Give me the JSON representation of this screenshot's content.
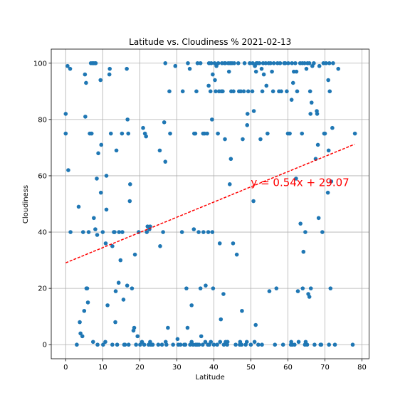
{
  "chart_data": {
    "type": "scatter",
    "title": "Latitude vs. Cloudiness % 2021-02-13",
    "xlabel": "Latitude",
    "ylabel": "Cloudiness",
    "xlim": [
      -3.9,
      81.9
    ],
    "ylim": [
      -5,
      105
    ],
    "xticks": [
      0,
      10,
      20,
      30,
      40,
      50,
      60,
      70,
      80
    ],
    "yticks": [
      0,
      20,
      40,
      60,
      80,
      100
    ],
    "grid": true,
    "marker_color": "#1f77b4",
    "regression": {
      "slope": 0.54,
      "intercept": 29.07,
      "x_range": [
        0,
        78
      ],
      "color": "#ff0000",
      "style": "dashed"
    },
    "annotation": {
      "text": "y = 0.54x + 29.07",
      "x": 50,
      "y": 55,
      "color": "#ff0000"
    },
    "points": [
      [
        0,
        82
      ],
      [
        0,
        75
      ],
      [
        0.5,
        99
      ],
      [
        0.7,
        62
      ],
      [
        1.2,
        98
      ],
      [
        1.3,
        40
      ],
      [
        3,
        0
      ],
      [
        3.5,
        49
      ],
      [
        3.8,
        8
      ],
      [
        4,
        4
      ],
      [
        4.5,
        3
      ],
      [
        4.7,
        40
      ],
      [
        5,
        12
      ],
      [
        5.2,
        96
      ],
      [
        5.3,
        81
      ],
      [
        5.5,
        93
      ],
      [
        5.6,
        20
      ],
      [
        5.8,
        20
      ],
      [
        6,
        15
      ],
      [
        6.2,
        40
      ],
      [
        6.5,
        75
      ],
      [
        6.8,
        100
      ],
      [
        7,
        75
      ],
      [
        7.2,
        100
      ],
      [
        7.4,
        1
      ],
      [
        7.5,
        100
      ],
      [
        7.6,
        45
      ],
      [
        7.9,
        100
      ],
      [
        8,
        41
      ],
      [
        8.1,
        100
      ],
      [
        8.4,
        59
      ],
      [
        8.5,
        39
      ],
      [
        8.6,
        0
      ],
      [
        8.8,
        68
      ],
      [
        9.4,
        94
      ],
      [
        9.6,
        71
      ],
      [
        9.5,
        54
      ],
      [
        10,
        40
      ],
      [
        10.1,
        0
      ],
      [
        10.7,
        1
      ],
      [
        10.8,
        36
      ],
      [
        11,
        60
      ],
      [
        11,
        48
      ],
      [
        11.3,
        14
      ],
      [
        11.8,
        96
      ],
      [
        11.9,
        98
      ],
      [
        12.2,
        75
      ],
      [
        12.6,
        0
      ],
      [
        12.6,
        35
      ],
      [
        13,
        40
      ],
      [
        13.2,
        40
      ],
      [
        13.4,
        8
      ],
      [
        13.5,
        19
      ],
      [
        13.7,
        69
      ],
      [
        13.9,
        0
      ],
      [
        14.3,
        22
      ],
      [
        14.4,
        40
      ],
      [
        14.8,
        30
      ],
      [
        15.2,
        75
      ],
      [
        15.3,
        40
      ],
      [
        15.6,
        16
      ],
      [
        15.8,
        0
      ],
      [
        16,
        0
      ],
      [
        16.5,
        98
      ],
      [
        16.6,
        21
      ],
      [
        16.7,
        80
      ],
      [
        16.9,
        75
      ],
      [
        17,
        0
      ],
      [
        17.3,
        51
      ],
      [
        17.4,
        57
      ],
      [
        17.9,
        20
      ],
      [
        18.3,
        5
      ],
      [
        18.5,
        6
      ],
      [
        18.7,
        32
      ],
      [
        19,
        0
      ],
      [
        19.4,
        3
      ],
      [
        19.7,
        40
      ],
      [
        20.1,
        0
      ],
      [
        20.6,
        1
      ],
      [
        20.9,
        77
      ],
      [
        21.2,
        0
      ],
      [
        21.4,
        75
      ],
      [
        21.7,
        74
      ],
      [
        21.9,
        40
      ],
      [
        22.1,
        42
      ],
      [
        22.4,
        0
      ],
      [
        22.6,
        41
      ],
      [
        22.8,
        1
      ],
      [
        22.8,
        42
      ],
      [
        23,
        0
      ],
      [
        23.5,
        0
      ],
      [
        25,
        0
      ],
      [
        25.4,
        69
      ],
      [
        25.5,
        35
      ],
      [
        26,
        0
      ],
      [
        26.3,
        40
      ],
      [
        26.6,
        79
      ],
      [
        26.9,
        65
      ],
      [
        26.9,
        100
      ],
      [
        27,
        1
      ],
      [
        27.2,
        0
      ],
      [
        27.6,
        6
      ],
      [
        28,
        90
      ],
      [
        28.2,
        75
      ],
      [
        29,
        0
      ],
      [
        29.6,
        99
      ],
      [
        30.2,
        2
      ],
      [
        30.4,
        0
      ],
      [
        31,
        0
      ],
      [
        31.4,
        40
      ],
      [
        31.6,
        90
      ],
      [
        32,
        0
      ],
      [
        32.3,
        0
      ],
      [
        32.6,
        20
      ],
      [
        32.9,
        6
      ],
      [
        33,
        100
      ],
      [
        33.5,
        98
      ],
      [
        33.6,
        0
      ],
      [
        34,
        14
      ],
      [
        34,
        1
      ],
      [
        34.4,
        0
      ],
      [
        34.6,
        41
      ],
      [
        34.7,
        75
      ],
      [
        35,
        75
      ],
      [
        35.1,
        0
      ],
      [
        35.3,
        90
      ],
      [
        35.5,
        0
      ],
      [
        35.6,
        100
      ],
      [
        35.9,
        40
      ],
      [
        36,
        0
      ],
      [
        36.4,
        20
      ],
      [
        36.4,
        100
      ],
      [
        36.6,
        3
      ],
      [
        37,
        0
      ],
      [
        37.1,
        75
      ],
      [
        37.2,
        40
      ],
      [
        37.5,
        75
      ],
      [
        37.7,
        1
      ],
      [
        37.8,
        21
      ],
      [
        38.2,
        75
      ],
      [
        38.4,
        0
      ],
      [
        38.5,
        40
      ],
      [
        38.6,
        92
      ],
      [
        38.7,
        100
      ],
      [
        38.8,
        0
      ],
      [
        39.1,
        90
      ],
      [
        39.2,
        1
      ],
      [
        39.3,
        100
      ],
      [
        39.5,
        80
      ],
      [
        39.6,
        40
      ],
      [
        39.7,
        96
      ],
      [
        39.8,
        20
      ],
      [
        40,
        0
      ],
      [
        40.2,
        100
      ],
      [
        40.3,
        94
      ],
      [
        40.5,
        90
      ],
      [
        40.7,
        99
      ],
      [
        40.9,
        0
      ],
      [
        41.1,
        75
      ],
      [
        41.2,
        100
      ],
      [
        41.4,
        90
      ],
      [
        41.6,
        36
      ],
      [
        41.7,
        1
      ],
      [
        41.9,
        9
      ],
      [
        42,
        90
      ],
      [
        42.2,
        100
      ],
      [
        42.4,
        90
      ],
      [
        42.6,
        18
      ],
      [
        42.7,
        0
      ],
      [
        42.9,
        100
      ],
      [
        43,
        73
      ],
      [
        43.1,
        100
      ],
      [
        43.2,
        1
      ],
      [
        43.6,
        0
      ],
      [
        43.7,
        1
      ],
      [
        43.9,
        100
      ],
      [
        44.1,
        97
      ],
      [
        44.3,
        57
      ],
      [
        44.4,
        100
      ],
      [
        44.6,
        66
      ],
      [
        44.7,
        90
      ],
      [
        44.9,
        100
      ],
      [
        45.2,
        36
      ],
      [
        45.3,
        90
      ],
      [
        45.5,
        100
      ],
      [
        45.9,
        0
      ],
      [
        46.2,
        32
      ],
      [
        46.6,
        100
      ],
      [
        46.8,
        90
      ],
      [
        47,
        0
      ],
      [
        47.1,
        1
      ],
      [
        47.3,
        90
      ],
      [
        47.5,
        0
      ],
      [
        47.6,
        12
      ],
      [
        47.8,
        73
      ],
      [
        48.1,
        90
      ],
      [
        48.3,
        100
      ],
      [
        48.6,
        0
      ],
      [
        48.9,
        1
      ],
      [
        49,
        78
      ],
      [
        49.1,
        82
      ],
      [
        49.3,
        90
      ],
      [
        49.7,
        100
      ],
      [
        50,
        0
      ],
      [
        50.4,
        90
      ],
      [
        50.5,
        100
      ],
      [
        50.7,
        51
      ],
      [
        50.8,
        83
      ],
      [
        51,
        1
      ],
      [
        51.1,
        99
      ],
      [
        51.3,
        7
      ],
      [
        51.4,
        97
      ],
      [
        51.5,
        100
      ],
      [
        51.8,
        100
      ],
      [
        52,
        0
      ],
      [
        52.3,
        100
      ],
      [
        52.6,
        73
      ],
      [
        52.9,
        98
      ],
      [
        53,
        0
      ],
      [
        53.1,
        90
      ],
      [
        53.3,
        100
      ],
      [
        53.5,
        96
      ],
      [
        54,
        100
      ],
      [
        54.2,
        92
      ],
      [
        54.5,
        75
      ],
      [
        54.8,
        100
      ],
      [
        55,
        19
      ],
      [
        55.3,
        100
      ],
      [
        55.7,
        97
      ],
      [
        56,
        90
      ],
      [
        56.2,
        100
      ],
      [
        56.5,
        0
      ],
      [
        56.9,
        20
      ],
      [
        57.2,
        100
      ],
      [
        57.6,
        90
      ],
      [
        57.9,
        100
      ],
      [
        58.2,
        90
      ],
      [
        58.7,
        0
      ],
      [
        59,
        100
      ],
      [
        59.3,
        100
      ],
      [
        59.7,
        90
      ],
      [
        60,
        75
      ],
      [
        60.1,
        100
      ],
      [
        60.5,
        75
      ],
      [
        60.8,
        0
      ],
      [
        60.9,
        1
      ],
      [
        61,
        87
      ],
      [
        61.1,
        100
      ],
      [
        61.2,
        0
      ],
      [
        61.4,
        93
      ],
      [
        61.6,
        97
      ],
      [
        61.8,
        0
      ],
      [
        62,
        100
      ],
      [
        62.2,
        59
      ],
      [
        62.3,
        97
      ],
      [
        62.5,
        90
      ],
      [
        62.7,
        19
      ],
      [
        62.9,
        1
      ],
      [
        63.3,
        100
      ],
      [
        63.4,
        43
      ],
      [
        63.8,
        75
      ],
      [
        63.9,
        100
      ],
      [
        64,
        20
      ],
      [
        64.2,
        33
      ],
      [
        64.5,
        100
      ],
      [
        64.6,
        0
      ],
      [
        64.7,
        40
      ],
      [
        64.8,
        1
      ],
      [
        65,
        98
      ],
      [
        65.2,
        0
      ],
      [
        65.3,
        100
      ],
      [
        65.5,
        18
      ],
      [
        65.8,
        100
      ],
      [
        65.8,
        17
      ],
      [
        66,
        90
      ],
      [
        66.1,
        82
      ],
      [
        66.2,
        20
      ],
      [
        66.4,
        86
      ],
      [
        66.6,
        99
      ],
      [
        67,
        100
      ],
      [
        67.2,
        0
      ],
      [
        67.5,
        66
      ],
      [
        67.8,
        83
      ],
      [
        67.9,
        82
      ],
      [
        68.1,
        71
      ],
      [
        68.3,
        45
      ],
      [
        68.5,
        99
      ],
      [
        68.8,
        0
      ],
      [
        69,
        0
      ],
      [
        69.3,
        40
      ],
      [
        69.6,
        100
      ],
      [
        69.8,
        75
      ],
      [
        70,
        75
      ],
      [
        70.3,
        100
      ],
      [
        70.8,
        54
      ],
      [
        70.9,
        94
      ],
      [
        71,
        69
      ],
      [
        71.1,
        0
      ],
      [
        71.2,
        100
      ],
      [
        71.3,
        90
      ],
      [
        71.5,
        20
      ],
      [
        71.7,
        58
      ],
      [
        72,
        77
      ],
      [
        72.2,
        100
      ],
      [
        72.7,
        0
      ],
      [
        73.6,
        98
      ],
      [
        77.5,
        0
      ],
      [
        78.1,
        75
      ]
    ]
  }
}
